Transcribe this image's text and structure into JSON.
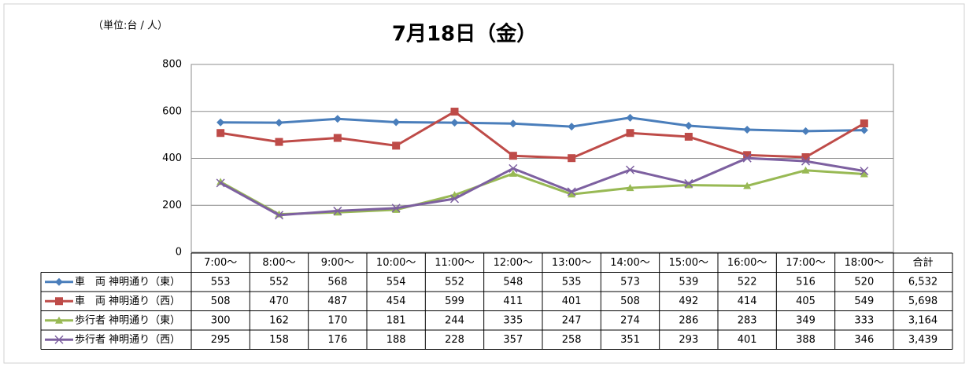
{
  "chart_data": {
    "type": "line",
    "title": "7月18日（金）",
    "unit_note": "（単位:台 / 人）",
    "total_header": "合計",
    "categories": [
      "7:00～",
      "8:00～",
      "9:00～",
      "10:00～",
      "11:00～",
      "12:00～",
      "13:00～",
      "14:00～",
      "15:00～",
      "16:00～",
      "17:00～",
      "18:00～"
    ],
    "ylim": [
      0,
      800
    ],
    "yticks": [
      0,
      200,
      400,
      600,
      800
    ],
    "grid": true,
    "series": [
      {
        "name": "車　両 神明通り（東）",
        "color": "#4a7ebb",
        "marker": "diamond",
        "values": [
          553,
          552,
          568,
          554,
          552,
          548,
          535,
          573,
          539,
          522,
          516,
          520
        ],
        "total": {
          "value": 6532,
          "label": "6,532"
        }
      },
      {
        "name": "車　両 神明通り（西）",
        "color": "#be4b48",
        "marker": "square",
        "values": [
          508,
          470,
          487,
          454,
          599,
          411,
          401,
          508,
          492,
          414,
          405,
          549
        ],
        "total": {
          "value": 5698,
          "label": "5,698"
        }
      },
      {
        "name": "歩行者 神明通り（東）",
        "color": "#98b954",
        "marker": "triangle",
        "values": [
          300,
          162,
          170,
          181,
          244,
          335,
          247,
          274,
          286,
          283,
          349,
          333
        ],
        "total": {
          "value": 3164,
          "label": "3,164"
        }
      },
      {
        "name": "歩行者 神明通り（西）",
        "color": "#7d60a0",
        "marker": "x",
        "values": [
          295,
          158,
          176,
          188,
          228,
          357,
          258,
          351,
          293,
          401,
          388,
          346
        ],
        "total": {
          "value": 3439,
          "label": "3,439"
        }
      }
    ]
  }
}
